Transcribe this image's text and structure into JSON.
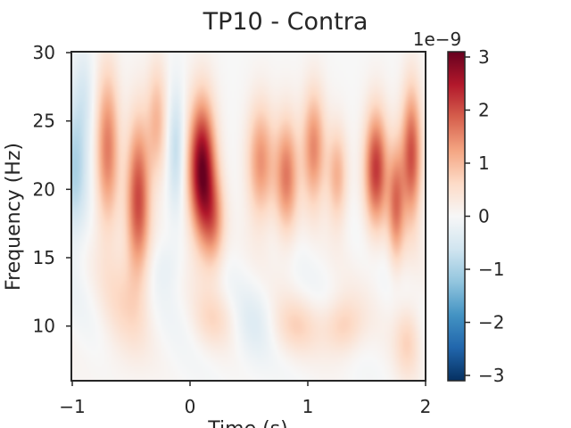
{
  "chart_data": {
    "type": "heatmap",
    "title": "TP10 - Contra",
    "xlabel": "Time (s)",
    "ylabel": "Frequency (Hz)",
    "xlim": [
      -1,
      2
    ],
    "ylim": [
      6,
      30
    ],
    "x_ticks": [
      -1,
      0,
      1,
      2
    ],
    "x_tick_labels": [
      "−1",
      "0",
      "1",
      "2"
    ],
    "y_ticks": [
      10,
      15,
      20,
      25,
      30
    ],
    "y_tick_labels": [
      "10",
      "15",
      "20",
      "25",
      "30"
    ],
    "colorbar": {
      "cmap": "RdBu_r",
      "vmin": -3.1,
      "vmax": 3.1,
      "ticks": [
        -3,
        -2,
        -1,
        0,
        1,
        2,
        3
      ],
      "tick_labels": [
        "−3",
        "−2",
        "−1",
        "0",
        "1",
        "2",
        "3"
      ],
      "offset_text": "1e−9",
      "colors": [
        "#053061",
        "#2166ac",
        "#4393c3",
        "#92c5de",
        "#d1e5f0",
        "#f7f7f7",
        "#fddbc7",
        "#f4a582",
        "#d6604d",
        "#b2182b",
        "#67001f"
      ]
    },
    "blobs": [
      {
        "t": -0.98,
        "f": 21.5,
        "st": 0.08,
        "sf": 3.5,
        "v": -1.0
      },
      {
        "t": -0.9,
        "f": 27.0,
        "st": 0.06,
        "sf": 2.5,
        "v": -0.4
      },
      {
        "t": -0.7,
        "f": 23.0,
        "st": 0.07,
        "sf": 4.0,
        "v": 1.6
      },
      {
        "t": -0.44,
        "f": 19.5,
        "st": 0.07,
        "sf": 4.0,
        "v": 2.0
      },
      {
        "t": -0.28,
        "f": 25.0,
        "st": 0.06,
        "sf": 3.0,
        "v": 1.0
      },
      {
        "t": 0.1,
        "f": 21.5,
        "st": 0.08,
        "sf": 3.5,
        "v": 3.0
      },
      {
        "t": 0.2,
        "f": 17.5,
        "st": 0.07,
        "sf": 2.5,
        "v": 1.2
      },
      {
        "t": -0.12,
        "f": 23.0,
        "st": 0.05,
        "sf": 3.0,
        "v": -0.8
      },
      {
        "t": 0.6,
        "f": 22.0,
        "st": 0.08,
        "sf": 3.0,
        "v": 1.4
      },
      {
        "t": 0.82,
        "f": 21.0,
        "st": 0.07,
        "sf": 3.0,
        "v": 1.6
      },
      {
        "t": 1.05,
        "f": 23.0,
        "st": 0.07,
        "sf": 3.0,
        "v": 1.5
      },
      {
        "t": 1.25,
        "f": 21.0,
        "st": 0.06,
        "sf": 2.5,
        "v": 1.1
      },
      {
        "t": 1.58,
        "f": 21.5,
        "st": 0.07,
        "sf": 3.0,
        "v": 2.2
      },
      {
        "t": 1.75,
        "f": 19.0,
        "st": 0.05,
        "sf": 3.0,
        "v": 1.6
      },
      {
        "t": 1.88,
        "f": 22.5,
        "st": 0.06,
        "sf": 3.5,
        "v": 2.0
      },
      {
        "t": 1.3,
        "f": 10.0,
        "st": 0.12,
        "sf": 1.5,
        "v": 0.8
      },
      {
        "t": 0.9,
        "f": 10.0,
        "st": 0.15,
        "sf": 1.5,
        "v": 0.6
      },
      {
        "t": 0.2,
        "f": 10.5,
        "st": 0.12,
        "sf": 1.5,
        "v": 0.5
      },
      {
        "t": -0.55,
        "f": 12.0,
        "st": 0.15,
        "sf": 3.5,
        "v": 0.5
      },
      {
        "t": 1.85,
        "f": 9.0,
        "st": 0.08,
        "sf": 2.0,
        "v": 0.7
      },
      {
        "t": 0.55,
        "f": 10.0,
        "st": 0.12,
        "sf": 2.0,
        "v": -0.3
      },
      {
        "t": -0.2,
        "f": 14.5,
        "st": 0.1,
        "sf": 1.5,
        "v": -0.3
      }
    ]
  }
}
